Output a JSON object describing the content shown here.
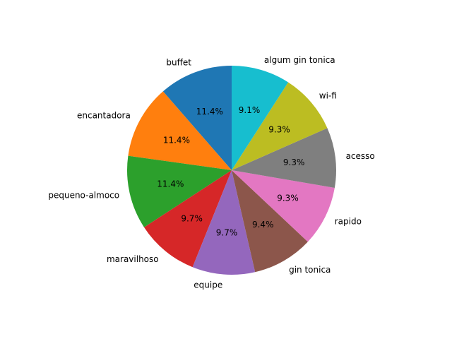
{
  "chart_data": {
    "type": "pie",
    "categories": [
      "buffet",
      "encantadora",
      "pequeno-almoco",
      "maravilhoso",
      "equipe",
      "gin tonica",
      "rapido",
      "acesso",
      "wi-fi",
      "algum gin tonica"
    ],
    "values": [
      11.4,
      11.4,
      11.4,
      9.7,
      9.7,
      9.4,
      9.3,
      9.3,
      9.3,
      9.1
    ],
    "labels": [
      "11.4%",
      "11.4%",
      "11.4%",
      "9.7%",
      "9.7%",
      "9.4%",
      "9.3%",
      "9.3%",
      "9.3%",
      "9.1%"
    ],
    "colors": [
      "#1f77b4",
      "#ff7f0e",
      "#2ca02c",
      "#d62728",
      "#9467bd",
      "#8c564b",
      "#e377c2",
      "#7f7f7f",
      "#bcbd22",
      "#17becf"
    ],
    "start_angle_deg": 90,
    "direction": "counterclockwise",
    "legend": "none"
  }
}
